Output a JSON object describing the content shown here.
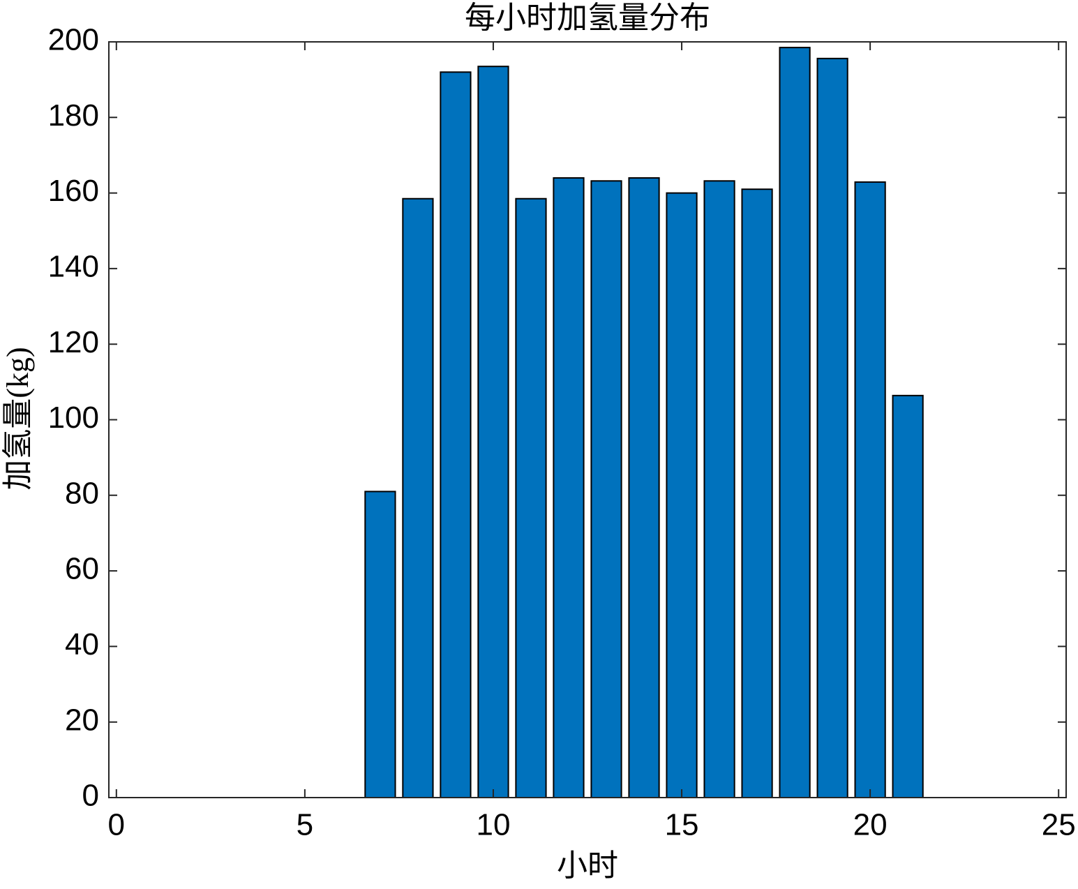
{
  "chart_data": {
    "type": "bar",
    "title": "每小时加氢量分布",
    "x_label": "小时",
    "y_label": "加氢量(kg)",
    "x": [
      7,
      8,
      9,
      10,
      11,
      12,
      13,
      14,
      15,
      16,
      17,
      18,
      19,
      20,
      21
    ],
    "values": [
      81,
      158.5,
      192,
      193.5,
      158.5,
      164,
      163.2,
      164,
      160,
      163.2,
      161,
      198.5,
      195.6,
      162.9,
      106.4
    ],
    "color": "#0072bd",
    "xlim": [
      -0.2,
      25.2
    ],
    "xticks": [
      0,
      5,
      10,
      15,
      20,
      25
    ],
    "ylim": [
      0,
      200
    ],
    "yticks": [
      0,
      20,
      40,
      60,
      80,
      100,
      120,
      140,
      160,
      180,
      200
    ]
  }
}
